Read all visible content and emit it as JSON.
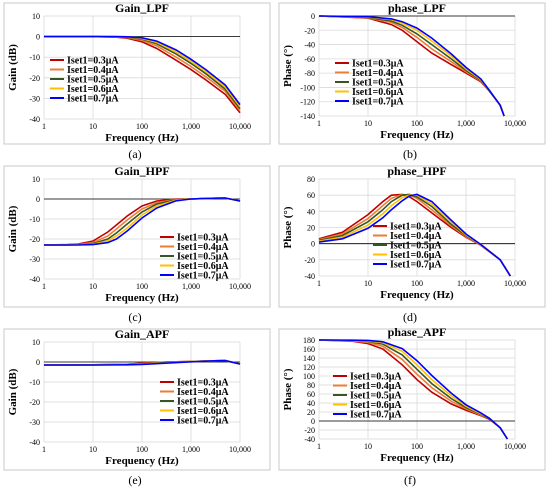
{
  "figure_labels": [
    "(a)",
    "(b)",
    "(c)",
    "(d)",
    "(e)",
    "(f)"
  ],
  "legend_entries": [
    "Iset1=0.3μA",
    "Iset1=0.4μA",
    "Iset1=0.5μA",
    "Iset1=0.6μA",
    "Iset1=0.7μA"
  ],
  "series_colors": [
    "#c00000",
    "#ed7d31",
    "#375623",
    "#ffc000",
    "#0000ff"
  ],
  "chart_data": [
    {
      "type": "line",
      "title": "Gain_LPF",
      "xlabel": "Frequency (Hz)",
      "ylabel": "Gain (dB)",
      "x_scale": "log",
      "xlim": [
        1,
        10000
      ],
      "x_ticks": [
        1,
        10,
        100,
        1000,
        10000
      ],
      "x_tick_labels": [
        "1",
        "10",
        "100",
        "1,000",
        "10,000"
      ],
      "ylim": [
        -40,
        10
      ],
      "y_ticks": [
        10,
        0,
        -10,
        -20,
        -30,
        -40
      ],
      "legend_position": "left",
      "x": [
        1,
        10,
        30,
        50,
        100,
        200,
        500,
        1000,
        2000,
        5000,
        10000
      ],
      "series": [
        {
          "name": "Iset1=0.3μA",
          "values": [
            0,
            0,
            -0.3,
            -0.8,
            -2.5,
            -5.8,
            -11.5,
            -16,
            -21,
            -28,
            -37
          ]
        },
        {
          "name": "Iset1=0.4μA",
          "values": [
            0,
            0,
            -0.2,
            -0.5,
            -1.8,
            -4.5,
            -10,
            -14.5,
            -19.5,
            -26.5,
            -36
          ]
        },
        {
          "name": "Iset1=0.5μA",
          "values": [
            0,
            0,
            -0.1,
            -0.3,
            -1.2,
            -3.5,
            -8.5,
            -13,
            -18,
            -25.5,
            -35
          ]
        },
        {
          "name": "Iset1=0.6μA",
          "values": [
            0,
            0,
            -0.1,
            -0.2,
            -0.9,
            -2.8,
            -7.5,
            -12,
            -17,
            -24.5,
            -34
          ]
        },
        {
          "name": "Iset1=0.7μA",
          "values": [
            0,
            0,
            0,
            -0.1,
            -0.6,
            -2.2,
            -6.5,
            -11,
            -16,
            -23.5,
            -33
          ]
        }
      ]
    },
    {
      "type": "line",
      "title": "phase_LPF",
      "xlabel": "Frequency (Hz)",
      "ylabel": "Phase (°)",
      "x_scale": "log",
      "xlim": [
        1,
        10000
      ],
      "x_ticks": [
        1,
        10,
        100,
        1000,
        10000
      ],
      "x_tick_labels": [
        "1",
        "10",
        "100",
        "1,000",
        "10,000"
      ],
      "ylim": [
        -140,
        0
      ],
      "y_ticks": [
        0,
        -20,
        -40,
        -60,
        -80,
        -100,
        -120,
        -140
      ],
      "legend_position": "left",
      "x": [
        1,
        10,
        30,
        50,
        100,
        200,
        500,
        1000,
        2000,
        3000,
        5000,
        6000
      ],
      "series": [
        {
          "name": "Iset1=0.3μA",
          "values": [
            0,
            -3,
            -12,
            -20,
            -36,
            -52,
            -68,
            -80,
            -92,
            -105,
            -125,
            -140
          ]
        },
        {
          "name": "Iset1=0.4μA",
          "values": [
            0,
            -2.5,
            -9,
            -16,
            -30,
            -46,
            -64,
            -78,
            -91,
            -105,
            -125,
            -140
          ]
        },
        {
          "name": "Iset1=0.5μA",
          "values": [
            0,
            -2,
            -7,
            -13,
            -25,
            -40,
            -60,
            -76,
            -90,
            -105,
            -125,
            -140
          ]
        },
        {
          "name": "Iset1=0.6μA",
          "values": [
            0,
            -1.5,
            -5,
            -10,
            -20,
            -35,
            -56,
            -74,
            -89,
            -104,
            -125,
            -140
          ]
        },
        {
          "name": "Iset1=0.7μA",
          "values": [
            0,
            -1,
            -4,
            -8,
            -17,
            -31,
            -53,
            -72,
            -88,
            -104,
            -125,
            -140
          ]
        }
      ]
    },
    {
      "type": "line",
      "title": "Gain_HPF",
      "xlabel": "Frequency (Hz)",
      "ylabel": "Gain (dB)",
      "x_scale": "log",
      "xlim": [
        1,
        10000
      ],
      "x_ticks": [
        1,
        10,
        100,
        1000,
        10000
      ],
      "x_tick_labels": [
        "1",
        "10",
        "100",
        "1,000",
        "10,000"
      ],
      "ylim": [
        -40,
        10
      ],
      "y_ticks": [
        10,
        0,
        -10,
        -20,
        -30,
        -40
      ],
      "legend_position": "bottom-right",
      "x": [
        1,
        3,
        5,
        10,
        20,
        30,
        50,
        100,
        200,
        500,
        1000,
        2000,
        5000,
        10000
      ],
      "series": [
        {
          "name": "Iset1=0.3μA",
          "values": [
            -23,
            -22.8,
            -22.5,
            -21,
            -16.5,
            -13,
            -8.5,
            -3.5,
            -1,
            0,
            0,
            0.3,
            0.5,
            -1
          ]
        },
        {
          "name": "Iset1=0.4μA",
          "values": [
            -23,
            -22.9,
            -22.7,
            -21.8,
            -18.5,
            -15,
            -10.5,
            -5,
            -1.8,
            -0.2,
            0,
            0.3,
            0.5,
            -1
          ]
        },
        {
          "name": "Iset1=0.5μA",
          "values": [
            -23,
            -23,
            -22.8,
            -22.3,
            -20,
            -17,
            -12.5,
            -6.5,
            -2.5,
            -0.4,
            0,
            0.3,
            0.5,
            -1
          ]
        },
        {
          "name": "Iset1=0.6μA",
          "values": [
            -23,
            -23,
            -22.9,
            -22.6,
            -21,
            -18.5,
            -14.5,
            -8,
            -3.5,
            -0.6,
            0,
            0.3,
            0.5,
            -1
          ]
        },
        {
          "name": "Iset1=0.7μA",
          "values": [
            -23,
            -23,
            -23,
            -22.8,
            -21.8,
            -20,
            -16,
            -9.5,
            -4.5,
            -0.9,
            0,
            0.3,
            0.5,
            -1
          ]
        }
      ]
    },
    {
      "type": "line",
      "title": "phase_HPF",
      "xlabel": "Frequency (Hz)",
      "ylabel": "Phase (°)",
      "x_scale": "log",
      "xlim": [
        1,
        10000
      ],
      "x_ticks": [
        1,
        10,
        100,
        1000,
        10000
      ],
      "x_tick_labels": [
        "1",
        "10",
        "100",
        "1,000",
        "10,000"
      ],
      "ylim": [
        -40,
        80
      ],
      "y_ticks": [
        80,
        60,
        40,
        20,
        0,
        -20,
        -40
      ],
      "legend_position": "bottom-right",
      "x": [
        1,
        3,
        10,
        20,
        30,
        50,
        70,
        100,
        200,
        500,
        1000,
        2000,
        5000,
        8000
      ],
      "series": [
        {
          "name": "Iset1=0.3μA",
          "values": [
            6,
            14,
            36,
            52,
            60,
            61,
            58,
            52,
            38,
            20,
            8,
            -2,
            -20,
            -40
          ]
        },
        {
          "name": "Iset1=0.4μA",
          "values": [
            5,
            12,
            31,
            47,
            56,
            61,
            60,
            56,
            42,
            22,
            9,
            -2,
            -20,
            -40
          ]
        },
        {
          "name": "Iset1=0.5μA",
          "values": [
            4,
            10,
            27,
            42,
            52,
            60,
            61,
            58,
            46,
            24,
            10,
            -1,
            -20,
            -40
          ]
        },
        {
          "name": "Iset1=0.6μA",
          "values": [
            3,
            8,
            23,
            37,
            47,
            57,
            60,
            60,
            49,
            27,
            11,
            -1,
            -20,
            -40
          ]
        },
        {
          "name": "Iset1=0.7μA",
          "values": [
            2,
            6,
            19,
            32,
            42,
            53,
            59,
            61,
            52,
            29,
            12,
            -1,
            -20,
            -40
          ]
        }
      ]
    },
    {
      "type": "line",
      "title": "Gain_APF",
      "xlabel": "Frequency (Hz)",
      "ylabel": "Gain (dB)",
      "x_scale": "log",
      "xlim": [
        1,
        10000
      ],
      "x_ticks": [
        1,
        10,
        100,
        1000,
        10000
      ],
      "x_tick_labels": [
        "1",
        "10",
        "100",
        "1,000",
        "10,000"
      ],
      "ylim": [
        -40,
        10
      ],
      "y_ticks": [
        10,
        0,
        -10,
        -20,
        -30,
        -40
      ],
      "legend_position": "bottom-right",
      "x": [
        1,
        10,
        50,
        100,
        300,
        1000,
        3000,
        5000,
        10000
      ],
      "series": [
        {
          "name": "Iset1=0.3μA",
          "values": [
            -1.5,
            -1.4,
            -1.1,
            -0.6,
            0,
            0.3,
            0.6,
            0.7,
            -1
          ]
        },
        {
          "name": "Iset1=0.4μA",
          "values": [
            -1.5,
            -1.4,
            -1.2,
            -0.8,
            -0.1,
            0.3,
            0.6,
            0.7,
            -1
          ]
        },
        {
          "name": "Iset1=0.5μA",
          "values": [
            -1.5,
            -1.4,
            -1.3,
            -1.0,
            -0.3,
            0.2,
            0.6,
            0.7,
            -1
          ]
        },
        {
          "name": "Iset1=0.6μA",
          "values": [
            -1.5,
            -1.5,
            -1.3,
            -1.1,
            -0.5,
            0.2,
            0.6,
            0.7,
            -1
          ]
        },
        {
          "name": "Iset1=0.7μA",
          "values": [
            -1.5,
            -1.5,
            -1.4,
            -1.2,
            -0.6,
            0.1,
            0.6,
            0.7,
            -1
          ]
        }
      ]
    },
    {
      "type": "line",
      "title": "phase_APF",
      "xlabel": "Frequency (Hz)",
      "ylabel": "Phase (°)",
      "x_scale": "log",
      "xlim": [
        1,
        10000
      ],
      "x_ticks": [
        1,
        10,
        100,
        1000,
        10000
      ],
      "x_tick_labels": [
        "1",
        "10",
        "100",
        "1,000",
        "10,000"
      ],
      "ylim": [
        -40,
        180
      ],
      "y_ticks": [
        180,
        160,
        140,
        120,
        100,
        80,
        60,
        40,
        20,
        0,
        -20,
        -40
      ],
      "legend_position": "bottom-left",
      "x": [
        1,
        5,
        10,
        20,
        50,
        100,
        200,
        500,
        1000,
        2000,
        3000,
        5000,
        7000
      ],
      "series": [
        {
          "name": "Iset1=0.3μA",
          "values": [
            180,
            177,
            172,
            160,
            125,
            92,
            64,
            38,
            24,
            12,
            4,
            -15,
            -40
          ]
        },
        {
          "name": "Iset1=0.4μA",
          "values": [
            180,
            178,
            175,
            166,
            137,
            104,
            74,
            44,
            27,
            13,
            5,
            -15,
            -40
          ]
        },
        {
          "name": "Iset1=0.5μA",
          "values": [
            180,
            179,
            177,
            171,
            147,
            115,
            83,
            50,
            30,
            15,
            5,
            -15,
            -40
          ]
        },
        {
          "name": "Iset1=0.6μA",
          "values": [
            180,
            179,
            178,
            174,
            155,
            125,
            92,
            56,
            33,
            16,
            6,
            -15,
            -40
          ]
        },
        {
          "name": "Iset1=0.7μA",
          "values": [
            180,
            179.5,
            179,
            176,
            161,
            134,
            101,
            62,
            36,
            18,
            6,
            -15,
            -40
          ]
        }
      ]
    }
  ]
}
